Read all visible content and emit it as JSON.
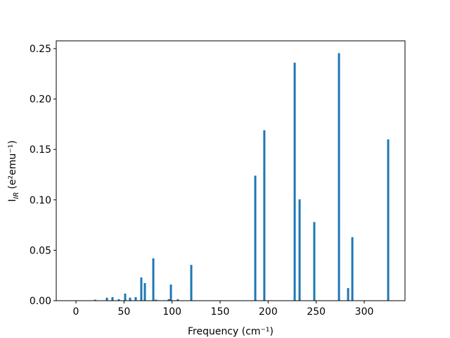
{
  "chart_data": {
    "type": "bar",
    "x_label": "Frequency (cm⁻¹)",
    "y_label": {
      "main": "I",
      "sub": "IR",
      "rest": "(e²emu⁻¹)"
    },
    "color": "#1f77b4",
    "x": [
      20,
      32.2,
      38,
      44.6,
      51.2,
      56.3,
      62.2,
      68,
      71.7,
      80.5,
      83.4,
      96.6,
      98.8,
      106,
      120,
      186.6,
      196,
      227.6,
      232.7,
      248,
      273.7,
      283.2,
      287.6,
      324.9
    ],
    "values": [
      0.001,
      0.003,
      0.0035,
      0.0015,
      0.007,
      0.003,
      0.0035,
      0.023,
      0.0175,
      0.042,
      0.001,
      0.0015,
      0.016,
      0.0015,
      0.0355,
      0.124,
      0.169,
      0.236,
      0.1005,
      0.078,
      0.2455,
      0.0125,
      0.063,
      0.16
    ],
    "xlim": [
      -20.5,
      342.4
    ],
    "ylim": [
      0,
      0.2577
    ],
    "xticks": [
      0,
      50,
      100,
      150,
      200,
      250,
      300
    ],
    "yticks": [
      {
        "value": 0,
        "label": "0.00"
      },
      {
        "value": 0.05,
        "label": "0.05"
      },
      {
        "value": 0.1,
        "label": "0.10"
      },
      {
        "value": 0.15,
        "label": "0.15"
      },
      {
        "value": 0.2,
        "label": "0.20"
      },
      {
        "value": 0.25,
        "label": "0.25"
      }
    ]
  }
}
